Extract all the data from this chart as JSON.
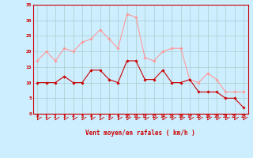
{
  "x": [
    0,
    1,
    2,
    3,
    4,
    5,
    6,
    7,
    8,
    9,
    10,
    11,
    12,
    13,
    14,
    15,
    16,
    17,
    18,
    19,
    20,
    21,
    22,
    23
  ],
  "vent_moyen": [
    10,
    10,
    10,
    12,
    10,
    10,
    14,
    14,
    11,
    10,
    17,
    17,
    11,
    11,
    14,
    10,
    10,
    11,
    7,
    7,
    7,
    5,
    5,
    2
  ],
  "rafales": [
    17,
    20,
    17,
    21,
    20,
    23,
    24,
    27,
    24,
    21,
    32,
    31,
    18,
    17,
    20,
    21,
    21,
    11,
    10,
    13,
    11,
    7,
    7,
    7
  ],
  "moyen_color": "#cc0000",
  "rafales_color": "#ff9999",
  "bg_color": "#cceeff",
  "grid_color": "#aacccc",
  "axis_color": "#cc0000",
  "xlabel": "Vent moyen/en rafales ( km/h )",
  "ylim": [
    0,
    35
  ],
  "yticks": [
    0,
    5,
    10,
    15,
    20,
    25,
    30,
    35
  ],
  "xticks": [
    0,
    1,
    2,
    3,
    4,
    5,
    6,
    7,
    8,
    9,
    10,
    11,
    12,
    13,
    14,
    15,
    16,
    17,
    18,
    19,
    20,
    21,
    22,
    23
  ]
}
